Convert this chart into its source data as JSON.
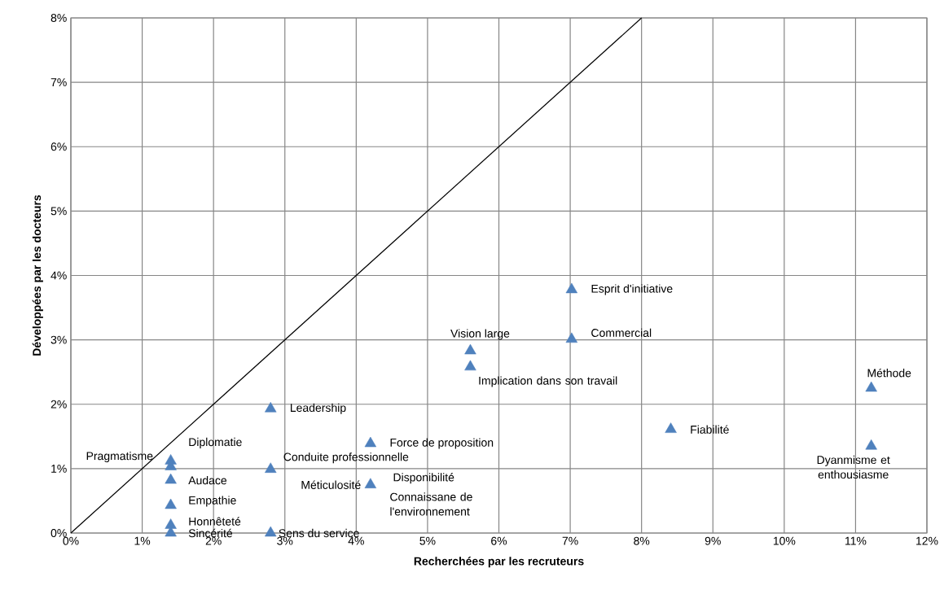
{
  "chart_data": {
    "type": "scatter",
    "xlabel": "Recherchées par les recruteurs",
    "ylabel": "Développées par les docteurs",
    "xlim": [
      0,
      12
    ],
    "ylim": [
      0,
      8
    ],
    "xticks": [
      {
        "value": 0,
        "label": "0%"
      },
      {
        "value": 1,
        "label": "1%"
      },
      {
        "value": 2,
        "label": "2%"
      },
      {
        "value": 3,
        "label": "3%"
      },
      {
        "value": 4,
        "label": "4%"
      },
      {
        "value": 5,
        "label": "5%"
      },
      {
        "value": 6,
        "label": "6%"
      },
      {
        "value": 7,
        "label": "7%"
      },
      {
        "value": 8,
        "label": "8%"
      },
      {
        "value": 9,
        "label": "9%"
      },
      {
        "value": 10,
        "label": "10%"
      },
      {
        "value": 11,
        "label": "11%"
      },
      {
        "value": 12,
        "label": "12%"
      }
    ],
    "yticks": [
      {
        "value": 0,
        "label": "0%"
      },
      {
        "value": 1,
        "label": "1%"
      },
      {
        "value": 2,
        "label": "2%"
      },
      {
        "value": 3,
        "label": "3%"
      },
      {
        "value": 4,
        "label": "4%"
      },
      {
        "value": 5,
        "label": "5%"
      },
      {
        "value": 6,
        "label": "6%"
      },
      {
        "value": 7,
        "label": "7%"
      },
      {
        "value": 8,
        "label": "8%"
      }
    ],
    "grid": true,
    "series": [
      {
        "color": "#4f81bd",
        "marker": "triangle",
        "x": [
          7.02,
          7.02,
          5.6,
          5.6,
          11.22,
          8.41,
          11.22,
          2.8,
          4.2,
          2.8,
          4.2,
          1.4,
          1.4,
          1.4,
          1.4,
          1.4,
          1.4,
          2.8
        ],
        "values": [
          3.78,
          3.01,
          2.83,
          2.58,
          2.25,
          1.61,
          1.35,
          1.93,
          1.39,
          0.99,
          0.75,
          1.12,
          1.03,
          0.82,
          0.43,
          0.12,
          0,
          0
        ]
      },
      {
        "type": "line",
        "color": "#000000",
        "marker": "none",
        "x": [
          0,
          8
        ],
        "values": [
          0,
          8
        ]
      }
    ],
    "annotations": [
      {
        "text": "Esprit d'initiative",
        "x": 7.02,
        "y": 3.78
      },
      {
        "text": "Commercial",
        "x": 7.02,
        "y": 3.01
      },
      {
        "text": "Vision large",
        "x": 5.6,
        "y": 2.83
      },
      {
        "text": "Implication dans son travail",
        "x": 5.6,
        "y": 2.58
      },
      {
        "text": "Méthode",
        "x": 11.22,
        "y": 2.25
      },
      {
        "text": "Fiabilité",
        "x": 8.41,
        "y": 1.61
      },
      {
        "text": "Dyanmisme et enthousiasme",
        "x": 11.22,
        "y": 1.35
      },
      {
        "text": "Leadership",
        "x": 2.8,
        "y": 1.93
      },
      {
        "text": "Force de proposition",
        "x": 4.2,
        "y": 1.39
      },
      {
        "text": "Conduite professionnelle",
        "x": 2.8,
        "y": 0.99
      },
      {
        "text": "Méticulosité",
        "x": 4.2,
        "y": 0.75
      },
      {
        "text": "Disponibilité",
        "x": 4.2,
        "y": 0.75
      },
      {
        "text": "Connaissane de l'environnement",
        "x": 4.2,
        "y": 0.75
      },
      {
        "text": "Diplomatie",
        "x": 1.4,
        "y": 1.12
      },
      {
        "text": "Pragmatisme",
        "x": 1.4,
        "y": 1.03
      },
      {
        "text": "Audace",
        "x": 1.4,
        "y": 0.82
      },
      {
        "text": "Empathie",
        "x": 1.4,
        "y": 0.43
      },
      {
        "text": "Honnêteté",
        "x": 1.4,
        "y": 0.12
      },
      {
        "text": "Sincérité",
        "x": 1.4,
        "y": 0
      },
      {
        "text": "Sens du service",
        "x": 2.8,
        "y": 0
      }
    ]
  }
}
